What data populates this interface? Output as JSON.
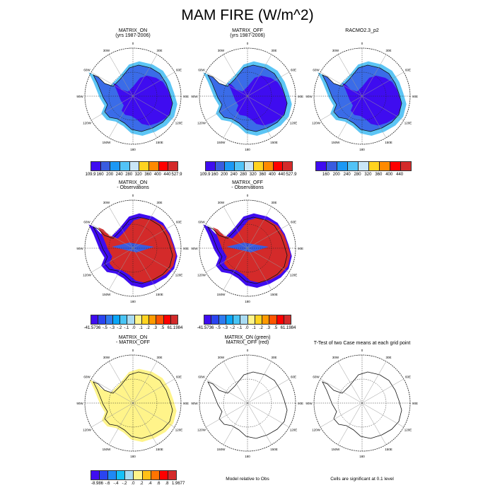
{
  "title": "MAM FIRE (W/m^2)",
  "lon_labels": [
    "0",
    "30E",
    "60E",
    "90E",
    "120E",
    "150E",
    "180",
    "150W",
    "120W",
    "90W",
    "60W",
    "30W"
  ],
  "panels": [
    {
      "title1": "MATRIX_ON",
      "title2": "(yrs 1987-2006)",
      "fill": "abs"
    },
    {
      "title1": "MATRIX_OFF",
      "title2": "(yrs 1987-2006)",
      "fill": "abs"
    },
    {
      "title1": "",
      "title2": "RACMO2.3_p2",
      "fill": "abs"
    },
    {
      "title1": "MATRIX_ON",
      "title2": "- Observations",
      "fill": "diff"
    },
    {
      "title1": "MATRIX_OFF",
      "title2": "- Observations",
      "fill": "diff"
    },
    {
      "title1": "MATRIX_ON",
      "title2": "- MATRIX_OFF",
      "fill": "yellow"
    },
    {
      "title1": "MATRIX_ON (green)",
      "title2": "MATRIX_OFF (red)",
      "fill": "none"
    },
    {
      "title1": "",
      "title2": "T-Test of two Case means at each grid point",
      "fill": "none"
    }
  ],
  "notes": {
    "model_rel": "Model relative to Obs",
    "signif": "Cells are significant at 0.1 level"
  },
  "chart_data": {
    "type": "heatmap",
    "colorbars": [
      {
        "colors": [
          "#3f0cf0",
          "#3a5ce0",
          "#1b98f5",
          "#52c3f7",
          "#c9e6f7",
          "#ffd320",
          "#ff8a00",
          "#ff0000",
          "#d42a2a"
        ],
        "labels": [
          "109.9",
          "160",
          "200",
          "240",
          "280",
          "320",
          "360",
          "400",
          "440",
          "527.9"
        ]
      },
      {
        "colors": [
          "#3f0cf0",
          "#3a5ce0",
          "#1b98f5",
          "#52c3f7",
          "#c9e6f7",
          "#ffd320",
          "#ff8a00",
          "#ff0000",
          "#d42a2a"
        ],
        "labels": [
          "109.9",
          "160",
          "200",
          "240",
          "280",
          "320",
          "360",
          "400",
          "440",
          "527.9"
        ]
      },
      {
        "colors": [
          "#3f0cf0",
          "#3a5ce0",
          "#1b98f5",
          "#52c3f7",
          "#c9e6f7",
          "#ffd320",
          "#ff8a00",
          "#ff0000",
          "#d42a2a"
        ],
        "labels": [
          "",
          "160",
          "200",
          "240",
          "280",
          "320",
          "360",
          "400",
          "440",
          ""
        ]
      },
      {
        "colors": [
          "#3f0cf0",
          "#2a44f0",
          "#2f7bf0",
          "#0aa6f8",
          "#48c4f5",
          "#a9dbf2",
          "#fff48a",
          "#ffd320",
          "#ff9a00",
          "#ff5500",
          "#ff0000",
          "#d42a2a"
        ],
        "labels": [
          "-41.5736",
          "-.5",
          "-.3",
          "-.2",
          "-.1",
          ".0",
          ".1",
          ".2",
          ".3",
          ".5",
          "61.1984"
        ]
      },
      {
        "colors": [
          "#3f0cf0",
          "#2a44f0",
          "#2f7bf0",
          "#0aa6f8",
          "#48c4f5",
          "#a9dbf2",
          "#fff48a",
          "#ffd320",
          "#ff9a00",
          "#ff5500",
          "#ff0000",
          "#d42a2a"
        ],
        "labels": [
          "-41.5736",
          "-.5",
          "-.3",
          "-.2",
          "-.1",
          ".0",
          ".1",
          ".2",
          ".3",
          ".5",
          "61.1984"
        ]
      },
      {
        "colors": [
          "#3f0cf0",
          "#2a44f0",
          "#1f88f5",
          "#14c0f8",
          "#a9dbf2",
          "#fff48a",
          "#ffc016",
          "#ff7400",
          "#ff0000",
          "#d42a2a"
        ],
        "labels": [
          "-8.986",
          "-.6",
          "-.4",
          "-.2",
          ".0",
          ".2",
          ".4",
          ".6",
          ".8",
          "1.9677"
        ]
      }
    ]
  }
}
